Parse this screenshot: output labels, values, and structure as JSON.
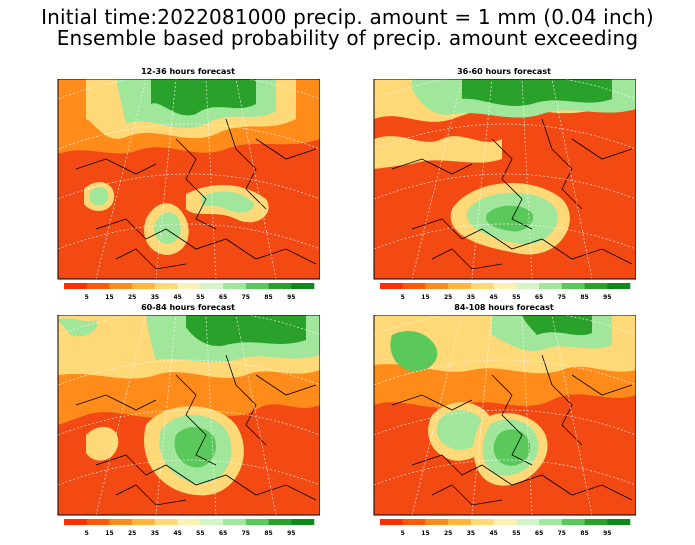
{
  "header": {
    "title_line1": "Initial time:2022081000 precip. amount = 1 mm (0.04 inch)",
    "title_line2": "Ensemble based probability of precip. amount exceeding"
  },
  "legend": {
    "labels": [
      "5",
      "15",
      "25",
      "35",
      "45",
      "55",
      "65",
      "75",
      "85",
      "95"
    ],
    "colors": [
      "#ff2d00",
      "#ff5a0a",
      "#ff8c1a",
      "#ffb43c",
      "#ffd878",
      "#fff0b4",
      "#d2f5c8",
      "#a0e69b",
      "#5ac85a",
      "#2aa12a",
      "#0f8a1a"
    ]
  },
  "panels": [
    {
      "id": "p1",
      "title": "12-36 hours forecast"
    },
    {
      "id": "p2",
      "title": "36-60 hours forecast"
    },
    {
      "id": "p3",
      "title": "60-84 hours forecast"
    },
    {
      "id": "p4",
      "title": "84-108 hours forecast"
    }
  ]
}
